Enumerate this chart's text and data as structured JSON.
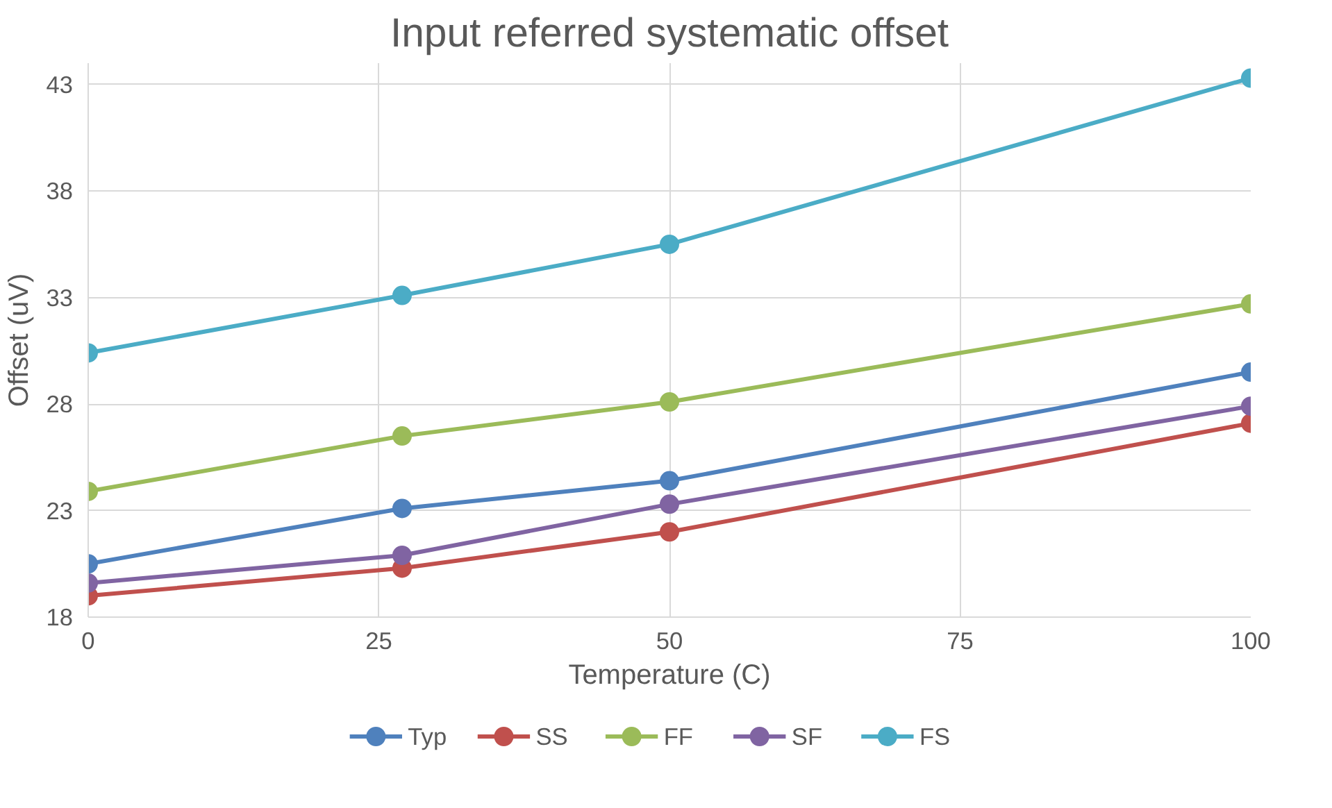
{
  "chart_data": {
    "type": "line",
    "title": "Input referred systematic offset",
    "xlabel": "Temperature (C)",
    "ylabel": "Offset (uV)",
    "x": [
      0,
      27,
      50,
      100
    ],
    "series": [
      {
        "name": "Typ",
        "color": "#4f81bd",
        "values": [
          20.5,
          23.1,
          24.4,
          29.5
        ]
      },
      {
        "name": "SS",
        "color": "#c0504d",
        "values": [
          19.0,
          20.3,
          22.0,
          27.1
        ]
      },
      {
        "name": "FF",
        "color": "#9bbb59",
        "values": [
          23.9,
          26.5,
          28.1,
          32.7
        ]
      },
      {
        "name": "SF",
        "color": "#8064a2",
        "values": [
          19.6,
          20.9,
          23.3,
          27.9
        ]
      },
      {
        "name": "FS",
        "color": "#4bacc6",
        "values": [
          30.4,
          33.1,
          35.5,
          43.3
        ]
      }
    ],
    "xlim": [
      0,
      100
    ],
    "xticks": [
      0,
      25,
      50,
      75,
      100
    ],
    "ylim": [
      18,
      44
    ],
    "yticks": [
      18,
      23,
      28,
      33,
      38,
      43
    ],
    "grid": true,
    "legend": "bottom",
    "marker": "circle",
    "line_style": "solid"
  }
}
